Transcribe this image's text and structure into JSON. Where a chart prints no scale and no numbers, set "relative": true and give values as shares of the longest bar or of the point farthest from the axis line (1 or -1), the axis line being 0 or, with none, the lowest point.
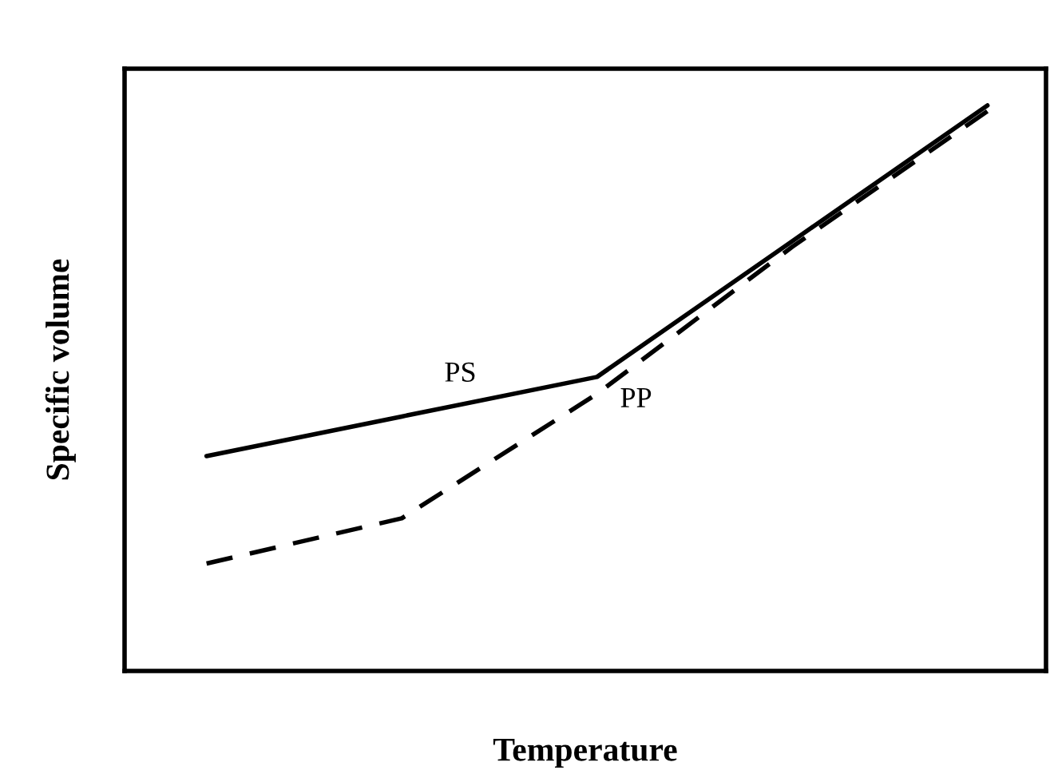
{
  "chart_data": {
    "type": "line",
    "xlabel": "Temperature",
    "ylabel": "Specific volume",
    "relative": true,
    "categories": [
      null,
      null,
      null,
      null,
      null
    ],
    "series": [
      {
        "name": "PS",
        "color": "#000000",
        "line_style": "solid",
        "values": [
          0.38,
          0.45,
          0.52,
          0.76,
          1.0
        ]
      },
      {
        "name": "PP",
        "color": "#000000",
        "line_style": "dashed",
        "values": [
          0.19,
          0.27,
          0.49,
          0.75,
          0.99
        ]
      }
    ],
    "tick_labels": false,
    "grid": false,
    "legend": false
  }
}
